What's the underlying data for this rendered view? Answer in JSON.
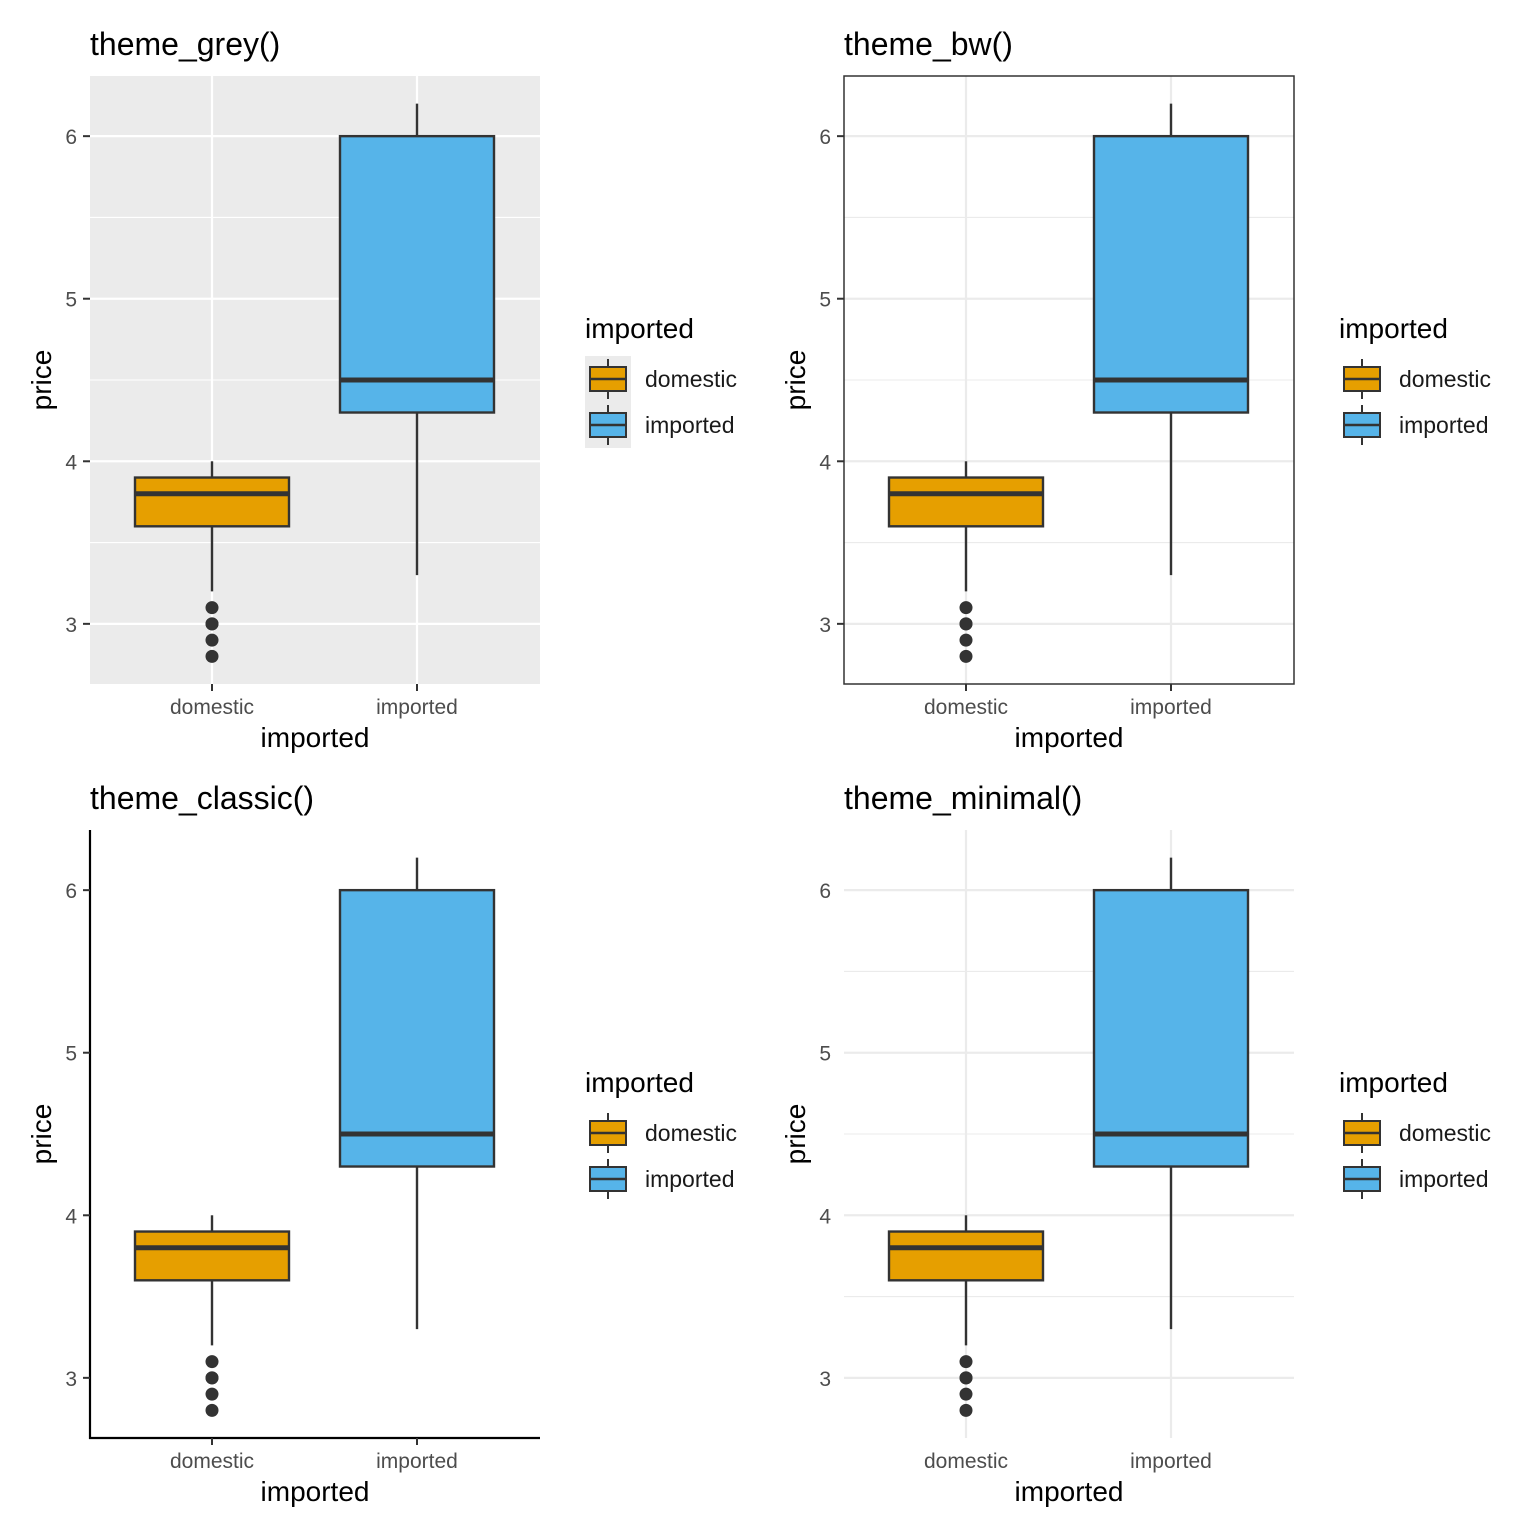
{
  "chart_data": [
    {
      "type": "box",
      "theme": "grey",
      "title": "theme_grey()",
      "xlabel": "imported",
      "ylabel": "price",
      "ylim": [
        2.63,
        6.37
      ],
      "yticks": [
        3,
        4,
        5,
        6
      ],
      "ytick_labels": [
        "3",
        "4",
        "5",
        "6"
      ],
      "grid": true,
      "categories": [
        "domestic",
        "imported"
      ],
      "boxes": [
        {
          "category": "domestic",
          "whisker_low": 3.2,
          "q1": 3.6,
          "median": 3.8,
          "q3": 3.9,
          "whisker_high": 4.0,
          "outliers": [
            3.1,
            3.0,
            3.0,
            2.9,
            2.8
          ]
        },
        {
          "category": "imported",
          "whisker_low": 3.3,
          "q1": 4.3,
          "median": 4.5,
          "q3": 6.0,
          "whisker_high": 6.2,
          "outliers": []
        }
      ],
      "legend": {
        "title": "imported",
        "entries": [
          "domestic",
          "imported"
        ],
        "position": "right"
      }
    },
    {
      "type": "box",
      "theme": "bw",
      "title": "theme_bw()",
      "xlabel": "imported",
      "ylabel": "price",
      "ylim": [
        2.63,
        6.37
      ],
      "yticks": [
        3,
        4,
        5,
        6
      ],
      "ytick_labels": [
        "3",
        "4",
        "5",
        "6"
      ],
      "grid": true,
      "categories": [
        "domestic",
        "imported"
      ],
      "boxes": [
        {
          "category": "domestic",
          "whisker_low": 3.2,
          "q1": 3.6,
          "median": 3.8,
          "q3": 3.9,
          "whisker_high": 4.0,
          "outliers": [
            3.1,
            3.0,
            3.0,
            2.9,
            2.8
          ]
        },
        {
          "category": "imported",
          "whisker_low": 3.3,
          "q1": 4.3,
          "median": 4.5,
          "q3": 6.0,
          "whisker_high": 6.2,
          "outliers": []
        }
      ],
      "legend": {
        "title": "imported",
        "entries": [
          "domestic",
          "imported"
        ],
        "position": "right"
      }
    },
    {
      "type": "box",
      "theme": "classic",
      "title": "theme_classic()",
      "xlabel": "imported",
      "ylabel": "price",
      "ylim": [
        2.63,
        6.37
      ],
      "yticks": [
        3,
        4,
        5,
        6
      ],
      "ytick_labels": [
        "3",
        "4",
        "5",
        "6"
      ],
      "grid": false,
      "categories": [
        "domestic",
        "imported"
      ],
      "boxes": [
        {
          "category": "domestic",
          "whisker_low": 3.2,
          "q1": 3.6,
          "median": 3.8,
          "q3": 3.9,
          "whisker_high": 4.0,
          "outliers": [
            3.1,
            3.0,
            3.0,
            2.9,
            2.8
          ]
        },
        {
          "category": "imported",
          "whisker_low": 3.3,
          "q1": 4.3,
          "median": 4.5,
          "q3": 6.0,
          "whisker_high": 6.2,
          "outliers": []
        }
      ],
      "legend": {
        "title": "imported",
        "entries": [
          "domestic",
          "imported"
        ],
        "position": "right"
      }
    },
    {
      "type": "box",
      "theme": "minimal",
      "title": "theme_minimal()",
      "xlabel": "imported",
      "ylabel": "price",
      "ylim": [
        2.63,
        6.37
      ],
      "yticks": [
        3,
        4,
        5,
        6
      ],
      "ytick_labels": [
        "3",
        "4",
        "5",
        "6"
      ],
      "grid": true,
      "categories": [
        "domestic",
        "imported"
      ],
      "boxes": [
        {
          "category": "domestic",
          "whisker_low": 3.2,
          "q1": 3.6,
          "median": 3.8,
          "q3": 3.9,
          "whisker_high": 4.0,
          "outliers": [
            3.1,
            3.0,
            3.0,
            2.9,
            2.8
          ]
        },
        {
          "category": "imported",
          "whisker_low": 3.3,
          "q1": 4.3,
          "median": 4.5,
          "q3": 6.0,
          "whisker_high": 6.2,
          "outliers": []
        }
      ],
      "legend": {
        "title": "imported",
        "entries": [
          "domestic",
          "imported"
        ],
        "position": "right"
      }
    }
  ],
  "colors": {
    "domestic": "#E69F00",
    "imported": "#56B4E9",
    "outline": "#333333",
    "grey_panel": "#EBEBEB",
    "grid_light": "#EBEBEB"
  }
}
